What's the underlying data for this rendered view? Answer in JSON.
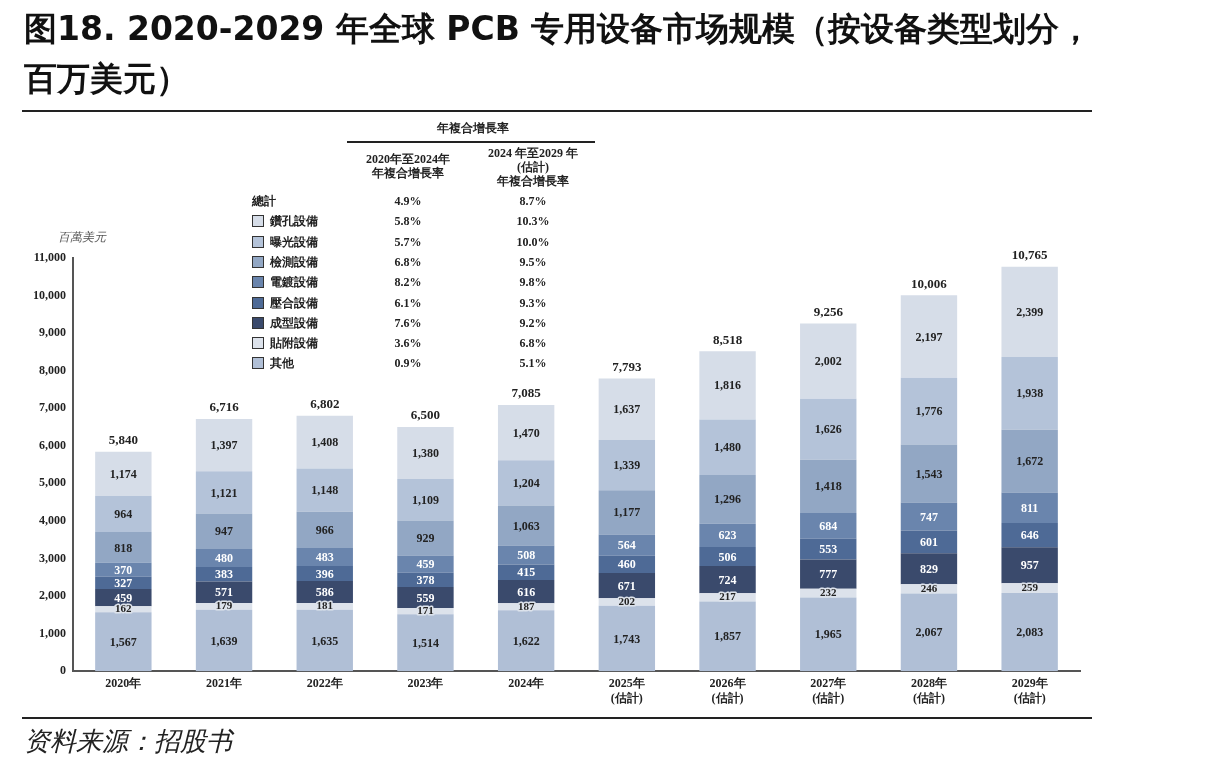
{
  "chart_data": {
    "type": "bar",
    "stacked": true,
    "legend": "top left",
    "title": "图18. 2020-2029 年全球 PCB 专用设备市场规模（按设备类型划分，百万美元）",
    "ylabel": "百萬美元",
    "categories": [
      "2020年",
      "2021年",
      "2022年",
      "2023年",
      "2024年",
      "2025年(估計)",
      "2026年(估計)",
      "2027年(估計)",
      "2028年(估計)",
      "2029年(估計)"
    ],
    "ylim": [
      0,
      11000
    ],
    "yticks": [
      {
        "value": 0,
        "label": "0"
      },
      {
        "value": 1000,
        "label": "1,000"
      },
      {
        "value": 2000,
        "label": "2,000"
      },
      {
        "value": 3000,
        "label": "3,000"
      },
      {
        "value": 4000,
        "label": "4,000"
      },
      {
        "value": 5000,
        "label": "5,000"
      },
      {
        "value": 6000,
        "label": "6,000"
      },
      {
        "value": 7000,
        "label": "7,000"
      },
      {
        "value": 8000,
        "label": "8,000"
      },
      {
        "value": 9000,
        "label": "9,000"
      },
      {
        "value": 10000,
        "label": "10,000"
      },
      {
        "value": 11000,
        "label": "11,000"
      }
    ],
    "grid": false,
    "series": [
      {
        "name": "其他",
        "color": "#b0bfd6",
        "values": [
          1567,
          1639,
          1635,
          1514,
          1622,
          1743,
          1857,
          1965,
          2067,
          2083
        ],
        "value_labels": [
          "1,567",
          "1,639",
          "1,635",
          "1,514",
          "1,622",
          "1,743",
          "1,857",
          "1,965",
          "2,067",
          "2,083"
        ]
      },
      {
        "name": "貼附設備",
        "color": "#dce2eb",
        "values": [
          162,
          179,
          181,
          171,
          187,
          202,
          217,
          232,
          246,
          259
        ],
        "value_labels": [
          "162",
          "179",
          "181",
          "171",
          "187",
          "202",
          "217",
          "232",
          "246",
          "259"
        ]
      },
      {
        "name": "成型設備",
        "color": "#3a4a6c",
        "values": [
          459,
          571,
          586,
          559,
          616,
          671,
          724,
          777,
          829,
          957
        ],
        "value_labels": [
          "459",
          "571",
          "586",
          "559",
          "616",
          "671",
          "724",
          "777",
          "829",
          "957"
        ]
      },
      {
        "name": "壓合設備",
        "color": "#4e6a96",
        "values": [
          327,
          383,
          396,
          378,
          415,
          460,
          506,
          553,
          601,
          646
        ],
        "value_labels": [
          "327",
          "383",
          "396",
          "378",
          "415",
          "460",
          "506",
          "553",
          "601",
          "646"
        ]
      },
      {
        "name": "電鍍設備",
        "color": "#6a85ad",
        "values": [
          370,
          480,
          483,
          459,
          508,
          564,
          623,
          684,
          747,
          811
        ],
        "value_labels": [
          "370",
          "480",
          "483",
          "459",
          "508",
          "564",
          "623",
          "684",
          "747",
          "811"
        ]
      },
      {
        "name": "檢測設備",
        "color": "#92a7c4",
        "values": [
          818,
          947,
          966,
          929,
          1063,
          1177,
          1296,
          1418,
          1543,
          1672
        ],
        "value_labels": [
          "818",
          "947",
          "966",
          "929",
          "1,063",
          "1,177",
          "1,296",
          "1,418",
          "1,543",
          "1,672"
        ]
      },
      {
        "name": "曝光設備",
        "color": "#b4c3d9",
        "values": [
          964,
          1121,
          1148,
          1109,
          1204,
          1339,
          1480,
          1626,
          1776,
          1938
        ],
        "value_labels": [
          "964",
          "1,121",
          "1,148",
          "1,109",
          "1,204",
          "1,339",
          "1,480",
          "1,626",
          "1,776",
          "1,938"
        ]
      },
      {
        "name": "鑽孔設備",
        "color": "#d6dde8",
        "values": [
          1174,
          1397,
          1408,
          1380,
          1470,
          1637,
          1816,
          2002,
          2197,
          2399
        ],
        "value_labels": [
          "1,174",
          "1,397",
          "1,408",
          "1,380",
          "1,470",
          "1,637",
          "1,816",
          "2,002",
          "2,197",
          "2,399"
        ]
      }
    ],
    "totals": [
      "5,840",
      "6,716",
      "6,802",
      "6,500",
      "7,085",
      "7,793",
      "8,518",
      "9,256",
      "10,006",
      "10,765"
    ],
    "annotations": [
      "年複合增長率",
      "2020年至2024年",
      "年複合增長率",
      "2024 年至2029 年",
      "(估計)",
      "年複合增長率",
      "總計",
      "4.9%",
      "8.7%",
      "5.8%",
      "10.3%",
      "5.7%",
      "10.0%",
      "6.8%",
      "9.5%",
      "8.2%",
      "9.8%",
      "6.1%",
      "9.3%",
      "7.6%",
      "9.2%",
      "3.6%",
      "6.8%",
      "0.9%",
      "5.1%",
      "资料来源：招股书"
    ]
  }
}
